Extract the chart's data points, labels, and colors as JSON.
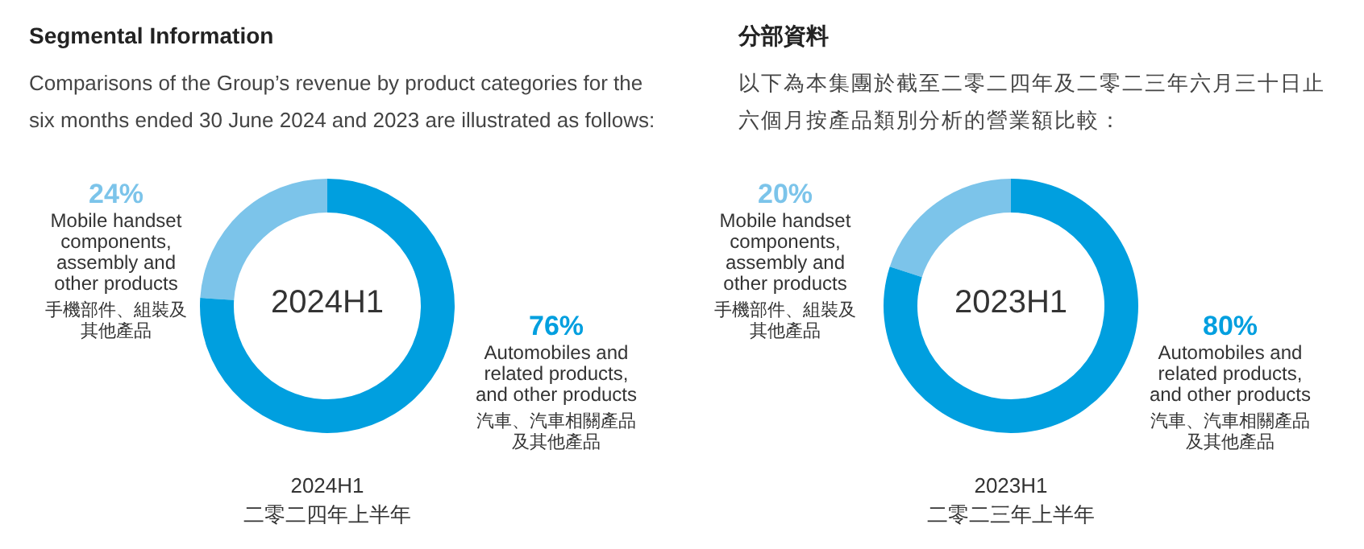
{
  "chart_data": [
    {
      "type": "donut",
      "title": "Segmental Information",
      "subtitle": "Comparisons of the Group’s revenue by product categories for the six months ended 30 June 2024 and 2023 are illustrated as follows:",
      "categories": [
        "Mobile handset components, assembly and other products\n手機部件、組裝及其他產品",
        "Automobiles and related products, and other products\n汽車、汽車相關產品及其他產品"
      ],
      "values": [
        24,
        76
      ],
      "value_labels": [
        "24%",
        "76%"
      ],
      "colors": [
        "#7cc4ea",
        "#009fdf"
      ],
      "annotations": [
        "2024H1",
        "2024H1\n二零二四年上半年"
      ]
    },
    {
      "type": "donut",
      "title": "分部資料",
      "subtitle": "以下為本集團於截至二零二四年及二零二三年六月三十日止六個月按產品類別分析的營業額比較：",
      "categories": [
        "Mobile handset components, assembly and other products\n手機部件、組裝及其他產品",
        "Automobiles and related products, and other products\n汽車、汽車相關產品及其他產品"
      ],
      "values": [
        20,
        80
      ],
      "value_labels": [
        "20%",
        "80%"
      ],
      "colors": [
        "#7cc4ea",
        "#009fdf"
      ],
      "annotations": [
        "2023H1",
        "2023H1\n二零二三年上半年"
      ]
    }
  ]
}
